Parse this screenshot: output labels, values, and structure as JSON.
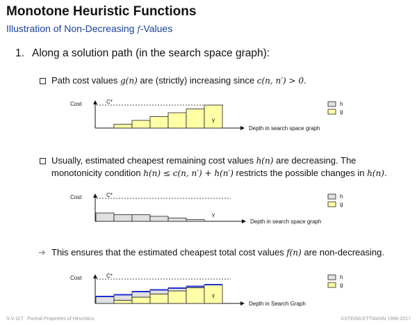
{
  "slide": {
    "title": "Monotone Heuristic Functions",
    "subtitle": "Illustration of Non-Decreasing f-Values",
    "item_number": "1.",
    "item_text": "Along a solution path (in the search space graph):"
  },
  "bullets": [
    {
      "prefix": "Path cost values ",
      "math1": "g(n)",
      "middle": " are (strictly) increasing since ",
      "math2": "c(n, n′) > 0",
      "suffix": "."
    },
    {
      "line1_prefix": "Usually, estimated cheapest remaining cost values ",
      "line1_math": "h(n)",
      "line1_suffix": " are decreasing. The",
      "line2_prefix": "monotonicity condition ",
      "line2_math1": "h(n) ≤ c(n, n′) + h(n′)",
      "line2_middle": " restricts the possible changes in ",
      "line2_math2": "h(n)",
      "line2_suffix": "."
    },
    {
      "prefix": "This ensures that the estimated cheapest total cost values ",
      "math": "f(n)",
      "suffix": " are non-decreasing."
    }
  ],
  "charts": {
    "cost_label": "Cost",
    "cstar_label": "C*",
    "gamma_label": "γ",
    "legend_h": "h",
    "legend_g": "g",
    "xlabel_1": "Depth in search space graph",
    "xlabel_2": "Depth in search space graph",
    "xlabel_3": "Depth in Search Graph",
    "colors": {
      "g": "#ffffa6",
      "h": "#e0e0e0",
      "f": "#1f2fd0",
      "outline": "#222222"
    }
  },
  "chart_data": [
    {
      "type": "bar",
      "title": "",
      "series": [
        {
          "name": "g",
          "values": [
            1,
            2,
            3,
            4,
            5,
            6
          ]
        }
      ]
    },
    {
      "type": "bar",
      "title": "",
      "series": [
        {
          "name": "h",
          "values": [
            5,
            4,
            4,
            3,
            2,
            1
          ]
        }
      ]
    },
    {
      "type": "bar",
      "title": "",
      "series": [
        {
          "name": "g",
          "values": [
            0,
            1,
            2,
            3,
            4,
            5,
            6
          ]
        },
        {
          "name": "h",
          "values": [
            5,
            4,
            4,
            3,
            2,
            1,
            0
          ]
        }
      ]
    }
  ],
  "footer": {
    "left_code": "S:V-117",
    "left_text": "Formal Properties of Heuristics",
    "right_text": "©STEIN/LETTMANN 1998-2017"
  }
}
